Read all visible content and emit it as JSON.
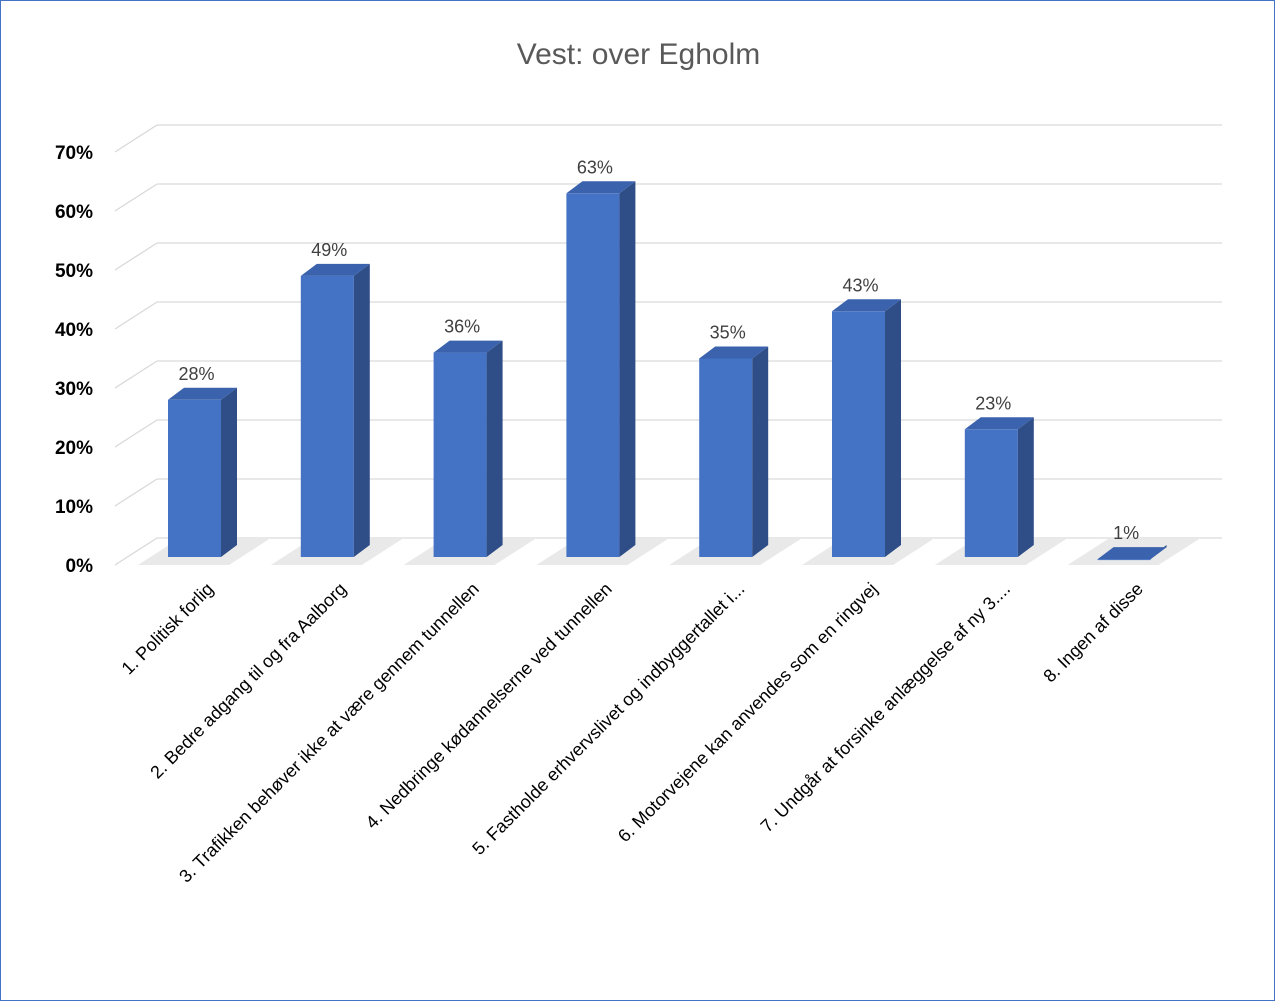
{
  "chart_data": {
    "type": "bar",
    "title": "Vest: over Egholm",
    "categories": [
      "1. Politisk forlig",
      "2. Bedre adgang til og fra Aalborg",
      "3. Trafikken behøver ikke at være gennem tunnellen",
      "4. Nedbringe kødannelserne ved tunnellen",
      "5. Fastholde erhvervslivet og indbyggertallet i...",
      "6. Motorvejene kan anvendes som en ringvej",
      "7. Undgår at forsinke anlæggelse af ny 3....",
      "8. Ingen af disse"
    ],
    "values": [
      28,
      49,
      36,
      63,
      35,
      43,
      23,
      1
    ],
    "data_labels": [
      "28%",
      "49%",
      "36%",
      "63%",
      "35%",
      "43%",
      "23%",
      "1%"
    ],
    "yticks": [
      "0%",
      "10%",
      "20%",
      "30%",
      "40%",
      "50%",
      "60%",
      "70%"
    ],
    "ylim": [
      0,
      70
    ],
    "xlabel": "",
    "ylabel": "",
    "grid": true,
    "legend": "none",
    "colors": {
      "bar_front": "#4472c4",
      "bar_side": "#2f4e88",
      "bar_top": "#3a62ad",
      "grid": "#d9d9d9"
    }
  }
}
